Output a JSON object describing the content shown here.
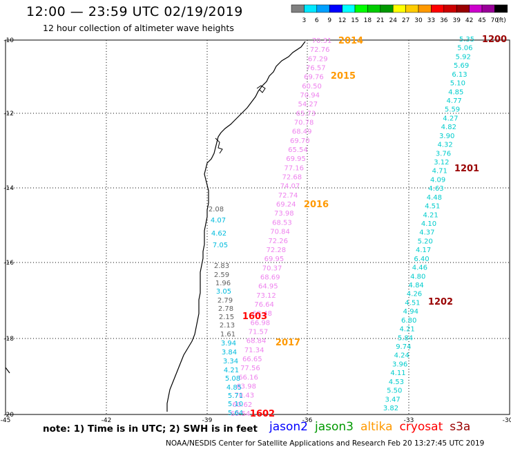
{
  "header": {
    "title": "12:00 — 23:59 UTC 02/19/2019",
    "subtitle": "12 hour collection of altimeter wave heights"
  },
  "scale": {
    "unit": "(ft)",
    "ticks": [
      "3",
      "6",
      "9",
      "12",
      "15",
      "18",
      "21",
      "24",
      "27",
      "30",
      "33",
      "36",
      "39",
      "42",
      "45",
      "70"
    ],
    "colors": [
      "#808080",
      "#00e8ff",
      "#00a0ff",
      "#0000ff",
      "#00ffff",
      "#00ff00",
      "#00cc00",
      "#009900",
      "#ffff00",
      "#ffcc00",
      "#ff9900",
      "#ff0000",
      "#cc0000",
      "#990000",
      "#cc00cc",
      "#990099",
      "#000000"
    ]
  },
  "axes": {
    "lon_labels": [
      "-45",
      "-42",
      "-39",
      "-36",
      "-33",
      "-30"
    ],
    "lat_labels": [
      "-10",
      "-12",
      "-14",
      "-16",
      "-18",
      "-20"
    ]
  },
  "tracks": [
    {
      "name": "pink-track",
      "color": "#ee82ee",
      "values": [
        "70.31",
        "72.76",
        "67.29",
        "76.57",
        "69.76",
        "60.50",
        "70.94",
        "54.27",
        "65.73",
        "70.78",
        "68.49",
        "69.70",
        "65.54",
        "69.95",
        "77.16",
        "72.68",
        "74.07",
        "72.74",
        "69.24",
        "73.98",
        "68.53",
        "70.84",
        "72.26",
        "72.28",
        "69.95",
        "70.37",
        "68.69",
        "64.95",
        "73.12",
        "76.64",
        "68.48",
        "66.98",
        "71.57",
        "68.84",
        "71.34",
        "66.65",
        "77.56",
        "66.16",
        "63.98",
        "70.43",
        "60.62",
        "60.54"
      ]
    },
    {
      "name": "east-track",
      "color": "#00cccc",
      "values": [
        "5.35",
        "5.06",
        "5.92",
        "5.69",
        "6.13",
        "5.10",
        "4.85",
        "4.77",
        "5.59",
        "4.27",
        "4.82",
        "3.90",
        "4.32",
        "3.76",
        "3.12",
        "4.71",
        "4.09",
        "4.63",
        "4.48",
        "4.51",
        "4.21",
        "4.10",
        "4.37",
        "5.20",
        "4.17",
        "6.40",
        "4.46",
        "4.80",
        "4.84",
        "4.26",
        "4.51",
        "4.94",
        "6.80",
        "4.21",
        "5.84",
        "9.74",
        "4.24",
        "3.96",
        "4.11",
        "4.53",
        "5.50",
        "3.47",
        "3.82"
      ]
    },
    {
      "name": "coastal-track",
      "color": "#00bbdd",
      "values": [
        "2.08",
        "4.07",
        "4.62",
        "7.05",
        "2.83",
        "2.59",
        "1.96",
        "3.05",
        "2.79",
        "2.78",
        "2.15",
        "2.13",
        "1.61",
        "3.94",
        "3.84",
        "3.34",
        "4.21",
        "5.08",
        "4.85",
        "5.71",
        "5.10",
        "5.64"
      ]
    }
  ],
  "time_labels": [
    {
      "text": "2014",
      "color": "#ff9900"
    },
    {
      "text": "2015",
      "color": "#ff9900"
    },
    {
      "text": "2016",
      "color": "#ff9900"
    },
    {
      "text": "2017",
      "color": "#ff9900"
    },
    {
      "text": "1200",
      "color": "#990000"
    },
    {
      "text": "1201",
      "color": "#990000"
    },
    {
      "text": "1202",
      "color": "#990000"
    },
    {
      "text": "1603",
      "color": "#ff0000"
    },
    {
      "text": "1602",
      "color": "#ff0000"
    }
  ],
  "note": "note: 1) Time is in UTC; 2) SWH is in feet",
  "legend": [
    {
      "label": "jason2",
      "color": "#0000ff"
    },
    {
      "label": "jason3",
      "color": "#009900"
    },
    {
      "label": "altika",
      "color": "#ff9900"
    },
    {
      "label": "cryosat",
      "color": "#ff0000"
    },
    {
      "label": "s3a",
      "color": "#990000"
    }
  ],
  "credit": "NOAA/NESDIS Center for Satellite Applications and Research   Feb 20 13:27:45 UTC 2019"
}
